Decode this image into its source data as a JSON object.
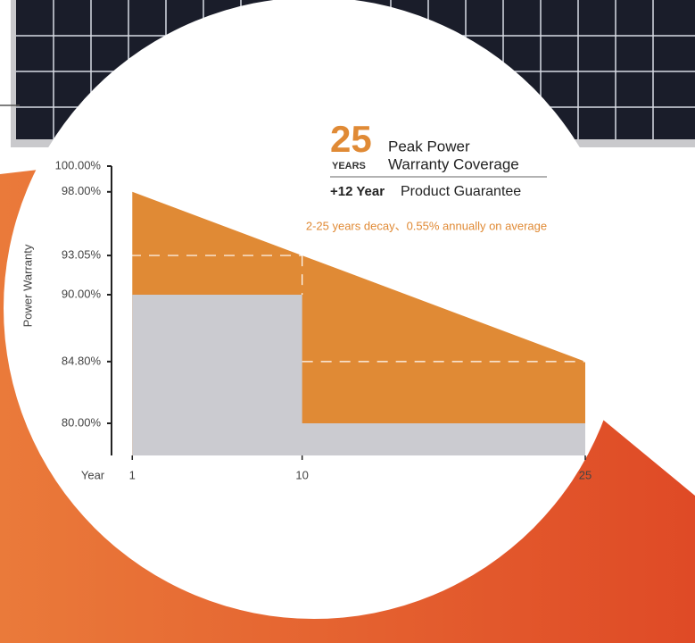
{
  "chart_data": {
    "type": "area",
    "y_label": "Power Warranty",
    "x_label": "Year",
    "x": [
      1,
      10,
      25
    ],
    "xlim": [
      -0.1,
      25
    ],
    "xticks": [
      1,
      10,
      25
    ],
    "ylim": [
      77.5,
      100
    ],
    "yticks": [
      {
        "value": 100,
        "label": "100.00%"
      },
      {
        "value": 98,
        "label": "98.00%"
      },
      {
        "value": 93.05,
        "label": "93.05%"
      },
      {
        "value": 90,
        "label": "90.00%"
      },
      {
        "value": 84.8,
        "label": "84.80%"
      },
      {
        "value": 80,
        "label": "80.00%"
      }
    ],
    "series": [
      {
        "color": "#e08a35",
        "x": [
          1,
          10,
          25
        ],
        "values": [
          98,
          93.05,
          84.8
        ]
      },
      {
        "color": "#cbcbd0",
        "x": [
          1,
          10,
          10,
          25
        ],
        "values": [
          90,
          90,
          80,
          80
        ]
      }
    ],
    "annotations": {
      "big_number": "25",
      "years": "YEARS",
      "line1": "Peak Power",
      "line2": "Warranty Coverage",
      "guarantee_bold": "+12 Year",
      "guarantee": "Product Guarantee",
      "decay": "2-25 years decay、0.55% annually on average"
    }
  }
}
